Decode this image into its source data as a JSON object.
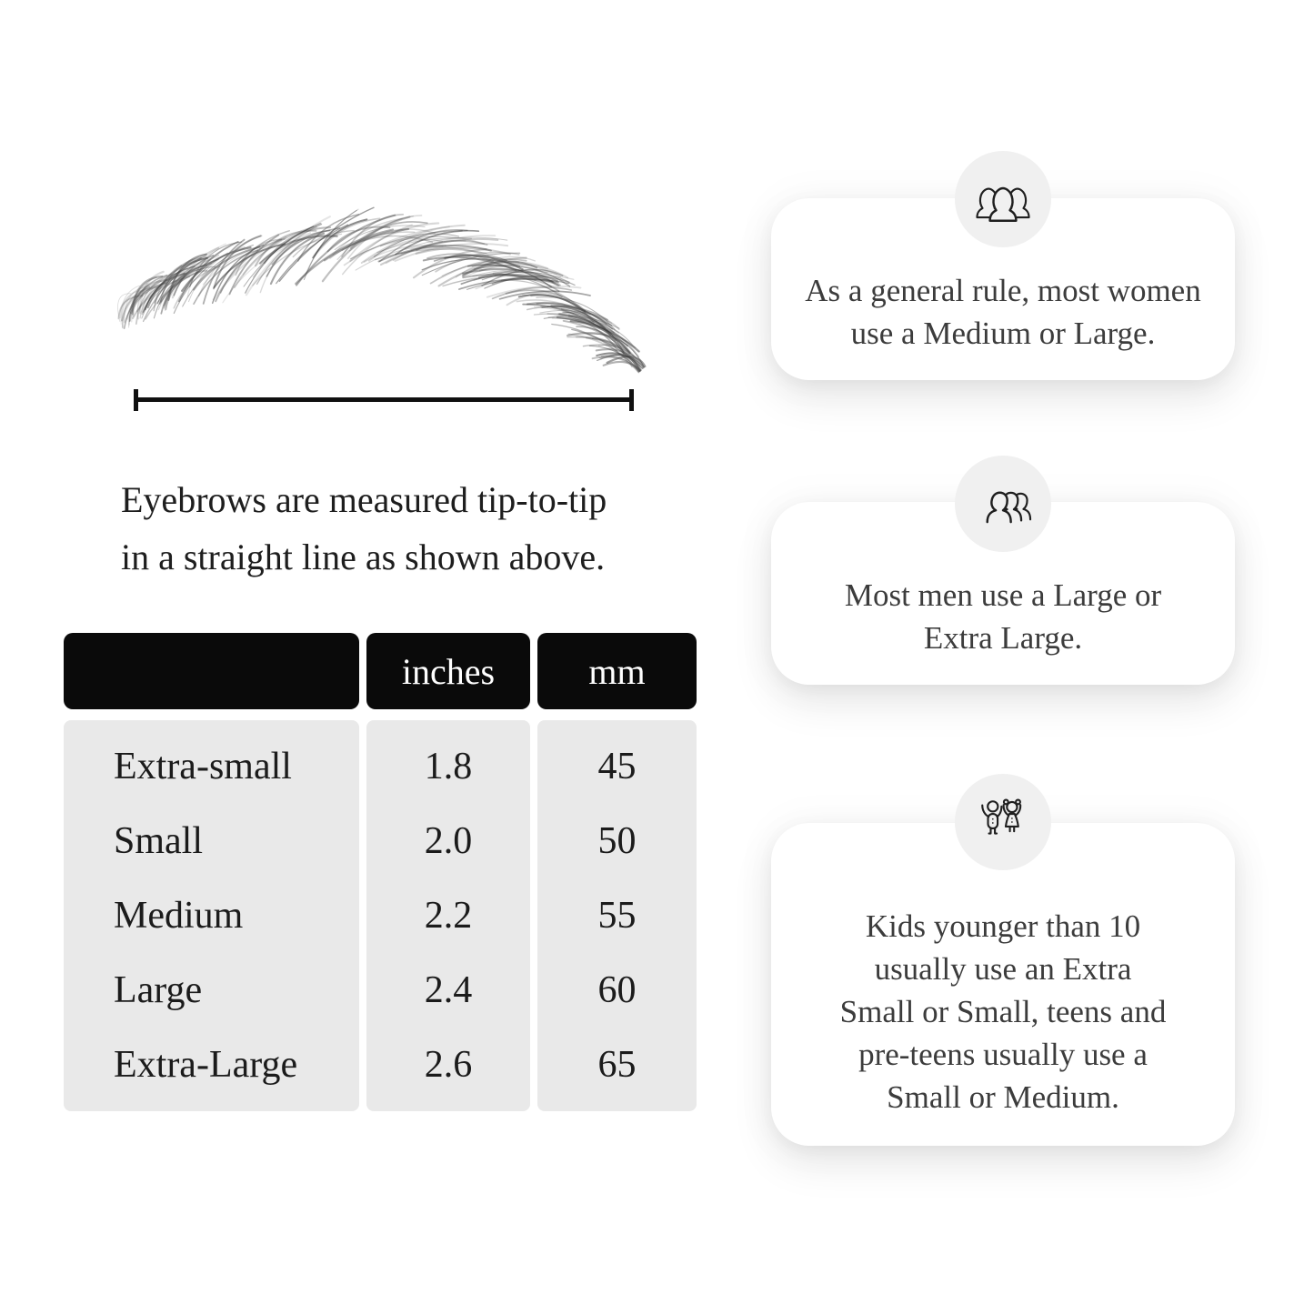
{
  "measurement": {
    "caption_lines": [
      "Eyebrows are measured tip-to-tip",
      "in a straight line as shown above."
    ]
  },
  "table": {
    "headers": [
      "",
      "inches",
      "mm"
    ],
    "rows": [
      {
        "label": "Extra-small",
        "inches": "1.8",
        "mm": "45"
      },
      {
        "label": "Small",
        "inches": "2.0",
        "mm": "50"
      },
      {
        "label": "Medium",
        "inches": "2.2",
        "mm": "55"
      },
      {
        "label": "Large",
        "inches": "2.4",
        "mm": "60"
      },
      {
        "label": "Extra-Large",
        "inches": "2.6",
        "mm": "65"
      }
    ]
  },
  "cards": [
    {
      "icon": "women-group-icon",
      "text_lines": [
        "As a general rule, most women",
        "use a Medium or Large."
      ]
    },
    {
      "icon": "men-group-icon",
      "text_lines": [
        "Most men use a Large or",
        "Extra Large."
      ]
    },
    {
      "icon": "kids-icon",
      "text_lines": [
        "Kids younger than 10",
        "usually use an Extra",
        "Small or Small, teens and",
        "pre-teens usually use a",
        "Small or Medium."
      ]
    }
  ],
  "colors": {
    "table_header_bg": "#0a0a0a",
    "table_header_text": "#ffffff",
    "table_body_bg": "#e9e9e9",
    "card_bg": "#ffffff",
    "icon_circle_bg": "#f0f0f0",
    "ink": "#1e1e1e"
  },
  "chart_data": {
    "type": "table",
    "columns": [
      "",
      "inches",
      "mm"
    ],
    "rows": [
      [
        "Extra-small",
        1.8,
        45
      ],
      [
        "Small",
        2.0,
        50
      ],
      [
        "Medium",
        2.2,
        55
      ],
      [
        "Large",
        2.4,
        60
      ],
      [
        "Extra-Large",
        2.6,
        65
      ]
    ]
  }
}
